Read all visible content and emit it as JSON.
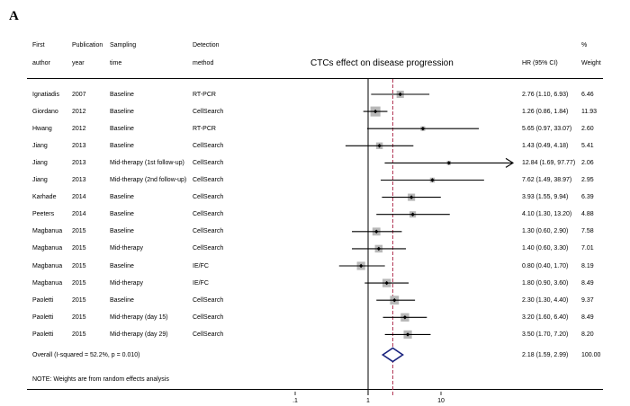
{
  "panel_label": "A",
  "headers": {
    "first_line": [
      "First",
      "Publication",
      "Sampling",
      "Detection",
      "%"
    ],
    "second_line": [
      "author",
      "year",
      "time",
      "method",
      "HR (95% CI)",
      "Weight"
    ]
  },
  "note": "NOTE: Weights are from random effects analysis",
  "chart_data": {
    "type": "forest",
    "title": "CTCs effect on disease progression",
    "x_scale": "log",
    "xlim": [
      0.03,
      200
    ],
    "ticks": [
      {
        "value": 0.1,
        "label": ".1"
      },
      {
        "value": 1,
        "label": "1"
      },
      {
        "value": 10,
        "label": "10"
      }
    ],
    "pooled_reference_line": 2.18,
    "studies": [
      {
        "author": "Ignatiadis",
        "year": "2007",
        "time": "Baseline",
        "method": "RT-PCR",
        "hr": 2.76,
        "lo": 1.1,
        "hi": 6.93,
        "ci_text": "2.76 (1.10, 6.93)",
        "weight": 6.46,
        "weight_text": "6.46"
      },
      {
        "author": "Giordano",
        "year": "2012",
        "time": "Baseline",
        "method": "CellSearch",
        "hr": 1.26,
        "lo": 0.86,
        "hi": 1.84,
        "ci_text": "1.26 (0.86, 1.84)",
        "weight": 11.93,
        "weight_text": "11.93"
      },
      {
        "author": "Hwang",
        "year": "2012",
        "time": "Baseline",
        "method": "RT-PCR",
        "hr": 5.65,
        "lo": 0.97,
        "hi": 33.07,
        "ci_text": "5.65 (0.97, 33.07)",
        "weight": 2.6,
        "weight_text": "2.60"
      },
      {
        "author": "Jiang",
        "year": "2013",
        "time": "Baseline",
        "method": "CellSearch",
        "hr": 1.43,
        "lo": 0.49,
        "hi": 4.18,
        "ci_text": "1.43 (0.49, 4.18)",
        "weight": 5.41,
        "weight_text": "5.41"
      },
      {
        "author": "Jiang",
        "year": "2013",
        "time": "Mid-therapy (1st follow-up)",
        "method": "CellSearch",
        "hr": 12.84,
        "lo": 1.69,
        "hi": 97.77,
        "ci_text": "12.84 (1.69, 97.77)",
        "weight": 2.06,
        "weight_text": "2.06",
        "arrow": true
      },
      {
        "author": "Jiang",
        "year": "2013",
        "time": "Mid-therapy (2nd follow-up)",
        "method": "CellSearch",
        "hr": 7.62,
        "lo": 1.49,
        "hi": 38.97,
        "ci_text": "7.62 (1.49, 38.97)",
        "weight": 2.95,
        "weight_text": "2.95"
      },
      {
        "author": "Karhade",
        "year": "2014",
        "time": "Baseline",
        "method": "CellSearch",
        "hr": 3.93,
        "lo": 1.55,
        "hi": 9.94,
        "ci_text": "3.93 (1.55, 9.94)",
        "weight": 6.39,
        "weight_text": "6.39"
      },
      {
        "author": "Peeters",
        "year": "2014",
        "time": "Baseline",
        "method": "CellSearch",
        "hr": 4.1,
        "lo": 1.3,
        "hi": 13.2,
        "ci_text": "4.10 (1.30, 13.20)",
        "weight": 4.88,
        "weight_text": "4.88"
      },
      {
        "author": "Magbanua",
        "year": "2015",
        "time": "Baseline",
        "method": "CellSearch",
        "hr": 1.3,
        "lo": 0.6,
        "hi": 2.9,
        "ci_text": "1.30 (0.60, 2.90)",
        "weight": 7.58,
        "weight_text": "7.58"
      },
      {
        "author": "Magbanua",
        "year": "2015",
        "time": "Mid-therapy",
        "method": "CellSearch",
        "hr": 1.4,
        "lo": 0.6,
        "hi": 3.3,
        "ci_text": "1.40 (0.60, 3.30)",
        "weight": 7.01,
        "weight_text": "7.01"
      },
      {
        "author": "Magbanua",
        "year": "2015",
        "time": "Baseline",
        "method": "IE/FC",
        "hr": 0.8,
        "lo": 0.4,
        "hi": 1.7,
        "ci_text": "0.80 (0.40, 1.70)",
        "weight": 8.19,
        "weight_text": "8.19"
      },
      {
        "author": "Magbanua",
        "year": "2015",
        "time": "Mid-therapy",
        "method": "IE/FC",
        "hr": 1.8,
        "lo": 0.9,
        "hi": 3.6,
        "ci_text": "1.80 (0.90, 3.60)",
        "weight": 8.49,
        "weight_text": "8.49"
      },
      {
        "author": "Paoletti",
        "year": "2015",
        "time": "Baseline",
        "method": "CellSearch",
        "hr": 2.3,
        "lo": 1.3,
        "hi": 4.4,
        "ci_text": "2.30 (1.30, 4.40)",
        "weight": 9.37,
        "weight_text": "9.37"
      },
      {
        "author": "Paoletti",
        "year": "2015",
        "time": "Mid-therapy (day 15)",
        "method": "CellSearch",
        "hr": 3.2,
        "lo": 1.6,
        "hi": 6.4,
        "ci_text": "3.20 (1.60, 6.40)",
        "weight": 8.49,
        "weight_text": "8.49"
      },
      {
        "author": "Paoletti",
        "year": "2015",
        "time": "Mid-therapy (day 29)",
        "method": "CellSearch",
        "hr": 3.5,
        "lo": 1.7,
        "hi": 7.2,
        "ci_text": "3.50 (1.70, 7.20)",
        "weight": 8.2,
        "weight_text": "8.20"
      }
    ],
    "overall": {
      "label": "Overall  (I-squared = 52.2%, p = 0.010)",
      "hr": 2.18,
      "lo": 1.59,
      "hi": 2.99,
      "ci_text": "2.18 (1.59, 2.99)",
      "weight_text": "100.00"
    }
  }
}
